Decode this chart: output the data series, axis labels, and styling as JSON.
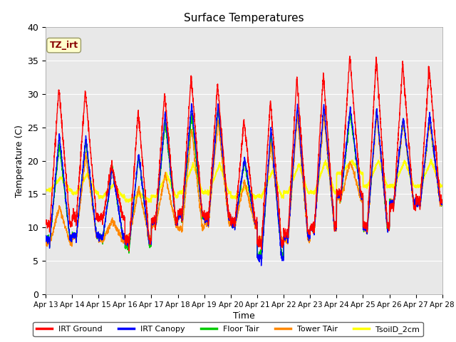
{
  "title": "Surface Temperatures",
  "xlabel": "Time",
  "ylabel": "Temperature (C)",
  "ylim": [
    0,
    40
  ],
  "yticks": [
    0,
    5,
    10,
    15,
    20,
    25,
    30,
    35,
    40
  ],
  "xtick_labels": [
    "Apr 13",
    "Apr 14",
    "Apr 15",
    "Apr 16",
    "Apr 17",
    "Apr 18",
    "Apr 19",
    "Apr 20",
    "Apr 21",
    "Apr 22",
    "Apr 23",
    "Apr 24",
    "Apr 25",
    "Apr 26",
    "Apr 27",
    "Apr 28"
  ],
  "legend_entries": [
    "IRT Ground",
    "IRT Canopy",
    "Floor Tair",
    "Tower TAir",
    "TsoilD_2cm"
  ],
  "colors": {
    "IRT Ground": "#ff0000",
    "IRT Canopy": "#0000ff",
    "Floor Tair": "#00cc00",
    "Tower TAir": "#ff8800",
    "TsoilD_2cm": "#ffff00"
  },
  "annotation_text": "TZ_irt",
  "annotation_color": "#880000",
  "annotation_bg": "#ffffcc",
  "plot_bg": "#e8e8e8",
  "fig_bg": "#ffffff"
}
